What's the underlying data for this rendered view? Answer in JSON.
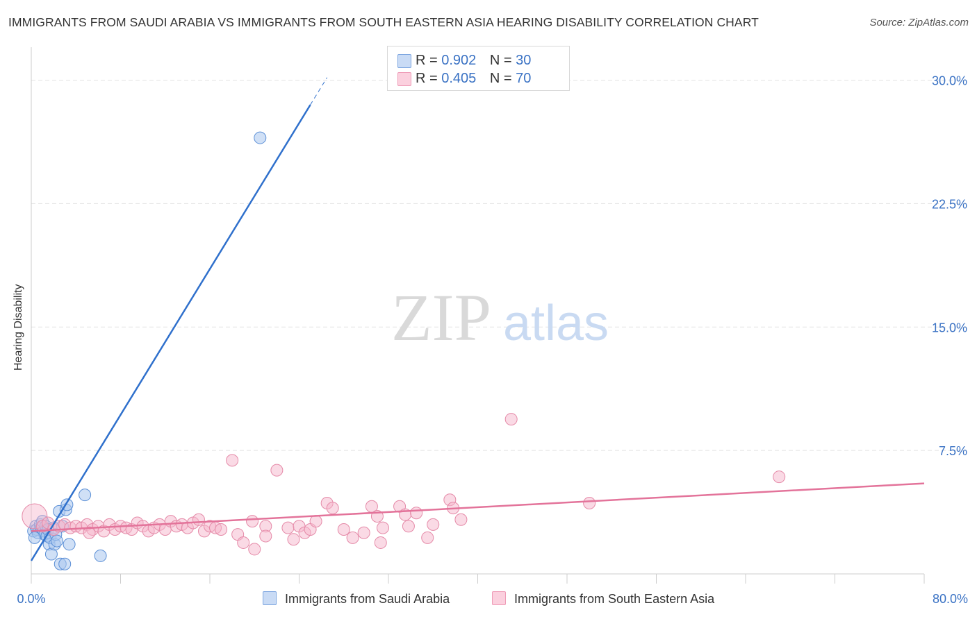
{
  "title": "IMMIGRANTS FROM SAUDI ARABIA VS IMMIGRANTS FROM SOUTH EASTERN ASIA HEARING DISABILITY CORRELATION CHART",
  "source": "Source: ZipAtlas.com",
  "watermark": {
    "zip": "ZIP",
    "atlas": "atlas"
  },
  "legend": {
    "rows": [
      {
        "r_label": "R =",
        "r_value": "0.902",
        "n_label": "N =",
        "n_value": "30",
        "color": "#a9c6ee"
      },
      {
        "r_label": "R =",
        "r_value": "0.405",
        "n_label": "N =",
        "n_value": "70",
        "color": "#f6b6cb"
      }
    ]
  },
  "bottom_legend": {
    "series1": "Immigrants from Saudi Arabia",
    "series2": "Immigrants from South Eastern Asia"
  },
  "chart_data": {
    "type": "scatter",
    "title": "IMMIGRANTS FROM SAUDI ARABIA VS IMMIGRANTS FROM SOUTH EASTERN ASIA HEARING DISABILITY CORRELATION CHART",
    "xlabel": "",
    "ylabel": "Hearing Disability",
    "xlim": [
      0,
      80
    ],
    "ylim": [
      0,
      31.5
    ],
    "x_tick_labels": [
      "0.0%",
      "80.0%"
    ],
    "y_ticks": [
      7.5,
      15.0,
      22.5,
      30.0
    ],
    "y_tick_labels": [
      "7.5%",
      "15.0%",
      "22.5%",
      "30.0%"
    ],
    "grid": true,
    "series": [
      {
        "name": "Immigrants from Saudi Arabia",
        "color": "#a9c6ee",
        "stroke": "#5b8fd6",
        "line_color": "#2f70cc",
        "trend": {
          "x0": 0,
          "y0": 0.8,
          "x1": 25,
          "y1": 28.5,
          "x_dash_end": 26.5
        },
        "points": [
          {
            "x": 0.2,
            "y": 2.6
          },
          {
            "x": 0.4,
            "y": 2.9
          },
          {
            "x": 0.5,
            "y": 2.7
          },
          {
            "x": 0.6,
            "y": 2.5
          },
          {
            "x": 0.8,
            "y": 3.0
          },
          {
            "x": 0.9,
            "y": 2.8
          },
          {
            "x": 1.0,
            "y": 3.2
          },
          {
            "x": 1.1,
            "y": 2.6
          },
          {
            "x": 1.2,
            "y": 2.4
          },
          {
            "x": 1.3,
            "y": 2.9
          },
          {
            "x": 1.4,
            "y": 2.3
          },
          {
            "x": 1.5,
            "y": 2.7
          },
          {
            "x": 1.6,
            "y": 1.8
          },
          {
            "x": 1.7,
            "y": 2.2
          },
          {
            "x": 1.8,
            "y": 1.2
          },
          {
            "x": 2.0,
            "y": 2.8
          },
          {
            "x": 2.1,
            "y": 1.8
          },
          {
            "x": 2.2,
            "y": 2.4
          },
          {
            "x": 2.3,
            "y": 2.0
          },
          {
            "x": 2.5,
            "y": 3.8
          },
          {
            "x": 2.6,
            "y": 0.6
          },
          {
            "x": 2.8,
            "y": 2.9
          },
          {
            "x": 3.0,
            "y": 0.6
          },
          {
            "x": 3.1,
            "y": 3.9
          },
          {
            "x": 3.2,
            "y": 4.2
          },
          {
            "x": 3.4,
            "y": 1.8
          },
          {
            "x": 4.8,
            "y": 4.8
          },
          {
            "x": 6.2,
            "y": 1.1
          },
          {
            "x": 20.5,
            "y": 26.5
          },
          {
            "x": 0.3,
            "y": 2.2
          }
        ]
      },
      {
        "name": "Immigrants from South Eastern Asia",
        "color": "#f6b6cb",
        "stroke": "#e58aa8",
        "line_color": "#e3739a",
        "trend": {
          "x0": 0,
          "y0": 2.6,
          "x1": 80,
          "y1": 5.5
        },
        "points": [
          {
            "x": 0.3,
            "y": 3.5,
            "big": true
          },
          {
            "x": 1.0,
            "y": 2.9
          },
          {
            "x": 1.5,
            "y": 3.1
          },
          {
            "x": 2.0,
            "y": 2.7
          },
          {
            "x": 2.5,
            "y": 2.9
          },
          {
            "x": 3.0,
            "y": 3.0
          },
          {
            "x": 3.5,
            "y": 2.8
          },
          {
            "x": 4.0,
            "y": 2.9
          },
          {
            "x": 4.5,
            "y": 2.8
          },
          {
            "x": 5.0,
            "y": 3.0
          },
          {
            "x": 5.5,
            "y": 2.7
          },
          {
            "x": 6.0,
            "y": 2.9
          },
          {
            "x": 6.5,
            "y": 2.6
          },
          {
            "x": 7.0,
            "y": 3.0
          },
          {
            "x": 7.5,
            "y": 2.7
          },
          {
            "x": 8.0,
            "y": 2.9
          },
          {
            "x": 8.5,
            "y": 2.8
          },
          {
            "x": 9.0,
            "y": 2.7
          },
          {
            "x": 9.5,
            "y": 3.1
          },
          {
            "x": 10.0,
            "y": 2.9
          },
          {
            "x": 10.5,
            "y": 2.6
          },
          {
            "x": 11.0,
            "y": 2.8
          },
          {
            "x": 11.5,
            "y": 3.0
          },
          {
            "x": 12.0,
            "y": 2.7
          },
          {
            "x": 12.5,
            "y": 3.2
          },
          {
            "x": 13.0,
            "y": 2.9
          },
          {
            "x": 13.5,
            "y": 3.0
          },
          {
            "x": 14.0,
            "y": 2.8
          },
          {
            "x": 14.5,
            "y": 3.1
          },
          {
            "x": 15.0,
            "y": 3.3
          },
          {
            "x": 15.5,
            "y": 2.6
          },
          {
            "x": 16.0,
            "y": 2.9
          },
          {
            "x": 16.5,
            "y": 2.8
          },
          {
            "x": 17.0,
            "y": 2.7
          },
          {
            "x": 18.0,
            "y": 6.9
          },
          {
            "x": 18.5,
            "y": 2.4
          },
          {
            "x": 19.0,
            "y": 1.9
          },
          {
            "x": 19.8,
            "y": 3.2
          },
          {
            "x": 20.0,
            "y": 1.5
          },
          {
            "x": 21.0,
            "y": 2.9
          },
          {
            "x": 21.0,
            "y": 2.3
          },
          {
            "x": 22.0,
            "y": 6.3
          },
          {
            "x": 23.0,
            "y": 2.8
          },
          {
            "x": 23.5,
            "y": 2.1
          },
          {
            "x": 24.0,
            "y": 2.9
          },
          {
            "x": 24.5,
            "y": 2.5
          },
          {
            "x": 25.0,
            "y": 2.7
          },
          {
            "x": 25.5,
            "y": 3.2
          },
          {
            "x": 26.5,
            "y": 4.3
          },
          {
            "x": 27.0,
            "y": 4.0
          },
          {
            "x": 28.0,
            "y": 2.7
          },
          {
            "x": 28.8,
            "y": 2.2
          },
          {
            "x": 29.8,
            "y": 2.5
          },
          {
            "x": 30.5,
            "y": 4.1
          },
          {
            "x": 31.0,
            "y": 3.5
          },
          {
            "x": 31.3,
            "y": 1.9
          },
          {
            "x": 31.5,
            "y": 2.8
          },
          {
            "x": 33.0,
            "y": 4.1
          },
          {
            "x": 33.5,
            "y": 3.6
          },
          {
            "x": 33.8,
            "y": 2.9
          },
          {
            "x": 34.5,
            "y": 3.7
          },
          {
            "x": 35.5,
            "y": 2.2
          },
          {
            "x": 36.0,
            "y": 3.0
          },
          {
            "x": 37.5,
            "y": 4.5
          },
          {
            "x": 37.8,
            "y": 4.0
          },
          {
            "x": 38.5,
            "y": 3.3
          },
          {
            "x": 43.0,
            "y": 9.4
          },
          {
            "x": 50.0,
            "y": 4.3
          },
          {
            "x": 67.0,
            "y": 5.9
          },
          {
            "x": 5.2,
            "y": 2.5
          }
        ]
      }
    ]
  }
}
